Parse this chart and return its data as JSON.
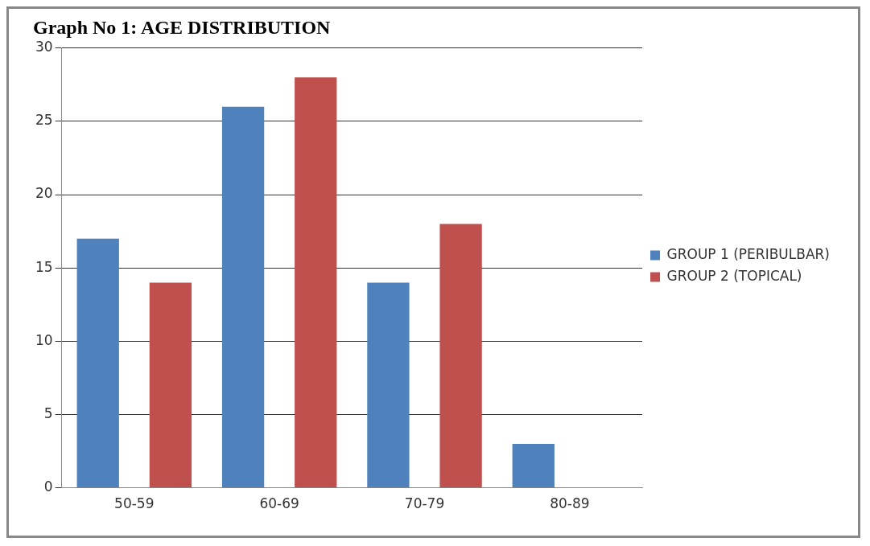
{
  "chart_data": {
    "type": "bar",
    "title": "Graph No 1: AGE DISTRIBUTION",
    "categories": [
      "50-59",
      "60-69",
      "70-79",
      "80-89"
    ],
    "series": [
      {
        "name": "GROUP 1 (PERIBULBAR)",
        "color": "#4f81bd",
        "values": [
          17,
          26,
          14,
          3
        ]
      },
      {
        "name": "GROUP 2 (TOPICAL)",
        "color": "#c0504d",
        "values": [
          14,
          28,
          18,
          0
        ]
      }
    ],
    "ylim": [
      0,
      30
    ],
    "yticks": [
      0,
      5,
      10,
      15,
      20,
      25,
      30
    ],
    "grid": "y",
    "legend": "right"
  }
}
